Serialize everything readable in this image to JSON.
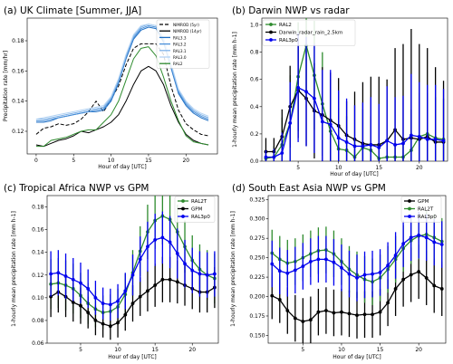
{
  "chart_data": [
    {
      "type": "line",
      "title": "(a) UK Climate [Summer, JJA]",
      "xlabel": "Hour of day [UTC]",
      "ylabel": "Precipitation rate [mm/hr]",
      "xlim": [
        -1.2,
        24.2
      ],
      "ylim": [
        0.105,
        0.195
      ],
      "xticks": [
        0,
        5,
        10,
        15,
        20
      ],
      "yticks": [
        0.12,
        0.14,
        0.16,
        0.18
      ],
      "ytick_labels": [
        "0.12",
        "0.14",
        "0.16",
        "0.18"
      ],
      "legend_position": "top-left",
      "x": [
        0,
        1,
        2,
        3,
        4,
        5,
        6,
        7,
        8,
        9,
        10,
        11,
        12,
        13,
        14,
        15,
        16,
        17,
        18,
        19,
        20,
        21,
        22,
        23
      ],
      "series": [
        {
          "name": "NIMROD (5yr)",
          "color": "#000000",
          "dash": "4,2",
          "values": [
            0.118,
            0.122,
            0.123,
            0.125,
            0.124,
            0.125,
            0.128,
            0.133,
            0.14,
            0.133,
            0.141,
            0.15,
            0.164,
            0.175,
            0.178,
            0.178,
            0.178,
            0.171,
            0.15,
            0.134,
            0.125,
            0.121,
            0.118,
            0.117
          ]
        },
        {
          "name": "NIMROD (14yr)",
          "color": "#000000",
          "values": [
            0.111,
            0.11,
            0.112,
            0.114,
            0.115,
            0.117,
            0.12,
            0.119,
            0.121,
            0.123,
            0.126,
            0.131,
            0.14,
            0.151,
            0.16,
            0.163,
            0.16,
            0.151,
            0.137,
            0.126,
            0.118,
            0.114,
            0.112,
            0.111
          ]
        },
        {
          "name": "RAL3.3",
          "color": "#1f6fc4",
          "values": [
            0.126,
            0.126,
            0.127,
            0.129,
            0.13,
            0.131,
            0.132,
            0.133,
            0.133,
            0.134,
            0.14,
            0.152,
            0.168,
            0.181,
            0.187,
            0.189,
            0.188,
            0.179,
            0.162,
            0.145,
            0.137,
            0.132,
            0.129,
            0.127
          ]
        },
        {
          "name": "RAL3.2",
          "color": "#4a90d9",
          "values": [
            0.127,
            0.127,
            0.128,
            0.129,
            0.13,
            0.131,
            0.132,
            0.133,
            0.134,
            0.135,
            0.141,
            0.153,
            0.169,
            0.182,
            0.188,
            0.19,
            0.189,
            0.18,
            0.163,
            0.146,
            0.138,
            0.133,
            0.13,
            0.128
          ]
        },
        {
          "name": "RAL3.1",
          "color": "#7fb2e8",
          "values": [
            0.128,
            0.128,
            0.129,
            0.13,
            0.131,
            0.132,
            0.133,
            0.134,
            0.135,
            0.136,
            0.142,
            0.154,
            0.17,
            0.183,
            0.189,
            0.191,
            0.19,
            0.181,
            0.164,
            0.147,
            0.139,
            0.134,
            0.131,
            0.129
          ]
        },
        {
          "name": "RAL3.0",
          "color": "#b3d3f3",
          "values": [
            0.128,
            0.129,
            0.13,
            0.131,
            0.132,
            0.133,
            0.134,
            0.135,
            0.136,
            0.137,
            0.143,
            0.155,
            0.171,
            0.184,
            0.19,
            0.191,
            0.19,
            0.182,
            0.165,
            0.148,
            0.14,
            0.135,
            0.132,
            0.13
          ]
        },
        {
          "name": "RAL2",
          "color": "#2e8b2e",
          "values": [
            0.11,
            0.11,
            0.114,
            0.115,
            0.116,
            0.118,
            0.12,
            0.121,
            0.121,
            0.126,
            0.131,
            0.14,
            0.154,
            0.168,
            0.175,
            0.176,
            0.17,
            0.156,
            0.14,
            0.127,
            0.117,
            0.113,
            0.112,
            0.111
          ]
        }
      ]
    },
    {
      "type": "line",
      "title": "(b) Darwin NWP vs radar",
      "xlabel": "Hour of day [UTC]",
      "ylabel": "1-hourly mean precipitation rate [mm h-1]",
      "xlim": [
        0.5,
        23.5
      ],
      "ylim": [
        0,
        1.05
      ],
      "xticks": [
        5,
        10,
        15,
        20
      ],
      "yticks": [
        0,
        0.2,
        0.4,
        0.6,
        0.8,
        1.0
      ],
      "ytick_labels": [
        "0.0",
        "0.2",
        "0.4",
        "0.6",
        "0.8",
        "1.0"
      ],
      "legend_position": "top-left",
      "x": [
        1,
        2,
        3,
        4,
        5,
        6,
        7,
        8,
        9,
        10,
        11,
        12,
        13,
        14,
        15,
        16,
        17,
        18,
        19,
        20,
        21,
        22,
        23
      ],
      "series": [
        {
          "name": "RAL2",
          "color": "#2e8b2e",
          "values": [
            0.02,
            0.03,
            0.12,
            0.28,
            0.62,
            0.85,
            0.63,
            0.42,
            0.22,
            0.09,
            0.08,
            0.03,
            0.1,
            0.08,
            0.02,
            0.03,
            0.03,
            0.03,
            0.08,
            0.18,
            0.2,
            0.17,
            0.16
          ],
          "err": [
            0.05,
            0.08,
            0.2,
            0.35,
            0.4,
            0.4,
            0.4,
            0.38,
            0.38,
            0.3,
            0.25,
            0.12,
            0.28,
            0.25,
            0.1,
            0.1,
            0.1,
            0.12,
            0.3,
            0.32,
            0.3,
            0.3,
            0.3
          ]
        },
        {
          "name": "Darwin_radar_rain_2.5km",
          "color": "#000000",
          "values": [
            0.07,
            0.07,
            0.18,
            0.4,
            0.52,
            0.46,
            0.37,
            0.34,
            0.3,
            0.26,
            0.19,
            0.16,
            0.13,
            0.12,
            0.12,
            0.15,
            0.23,
            0.16,
            0.17,
            0.16,
            0.18,
            0.14,
            0.14
          ],
          "err": [
            0.1,
            0.1,
            0.2,
            0.3,
            0.35,
            0.35,
            0.35,
            0.35,
            0.35,
            0.35,
            0.25,
            0.35,
            0.45,
            0.5,
            0.5,
            0.45,
            0.6,
            0.7,
            0.8,
            0.7,
            0.65,
            0.55,
            0.45
          ]
        },
        {
          "name": "RAL3p0",
          "color": "#0000ee",
          "values": [
            0.03,
            0.03,
            0.06,
            0.28,
            0.54,
            0.51,
            0.46,
            0.29,
            0.27,
            0.17,
            0.14,
            0.11,
            0.11,
            0.12,
            0.1,
            0.15,
            0.12,
            0.13,
            0.19,
            0.18,
            0.16,
            0.16,
            0.15
          ],
          "err": [
            0.05,
            0.06,
            0.15,
            0.3,
            0.4,
            0.4,
            0.4,
            0.38,
            0.4,
            0.35,
            0.32,
            0.3,
            0.32,
            0.35,
            0.32,
            0.4,
            0.35,
            0.35,
            0.45,
            0.4,
            0.4,
            0.4,
            0.38
          ]
        }
      ]
    },
    {
      "type": "line",
      "title": "(c) Tropical Africa NWP vs GPM",
      "xlabel": "Hour of day [UTC]",
      "ylabel": "1-hourly mean precipitation rate [mm h-1]",
      "xlim": [
        0.5,
        23.5
      ],
      "ylim": [
        0.06,
        0.19
      ],
      "xticks": [
        5,
        10,
        15,
        20
      ],
      "yticks": [
        0.06,
        0.08,
        0.1,
        0.12,
        0.14,
        0.16,
        0.18
      ],
      "ytick_labels": [
        "0.06",
        "0.08",
        "0.10",
        "0.12",
        "0.14",
        "0.16",
        "0.18"
      ],
      "legend_position": "top-right",
      "x": [
        1,
        2,
        3,
        4,
        5,
        6,
        7,
        8,
        9,
        10,
        11,
        12,
        13,
        14,
        15,
        16,
        17,
        18,
        19,
        20,
        21,
        22,
        23
      ],
      "series": [
        {
          "name": "RAL2T",
          "color": "#2e8b2e",
          "values": [
            0.112,
            0.113,
            0.111,
            0.108,
            0.102,
            0.095,
            0.09,
            0.087,
            0.088,
            0.092,
            0.103,
            0.122,
            0.141,
            0.158,
            0.168,
            0.172,
            0.169,
            0.158,
            0.145,
            0.133,
            0.125,
            0.12,
            0.117
          ],
          "err": [
            0.022,
            0.022,
            0.022,
            0.022,
            0.02,
            0.018,
            0.016,
            0.015,
            0.015,
            0.016,
            0.018,
            0.02,
            0.022,
            0.024,
            0.025,
            0.025,
            0.025,
            0.024,
            0.023,
            0.022,
            0.022,
            0.022,
            0.022
          ]
        },
        {
          "name": "GPM",
          "color": "#000000",
          "values": [
            0.101,
            0.105,
            0.101,
            0.096,
            0.093,
            0.087,
            0.08,
            0.077,
            0.075,
            0.078,
            0.085,
            0.095,
            0.101,
            0.106,
            0.111,
            0.116,
            0.116,
            0.114,
            0.111,
            0.108,
            0.105,
            0.105,
            0.109
          ],
          "err": [
            0.018,
            0.018,
            0.018,
            0.017,
            0.016,
            0.014,
            0.013,
            0.012,
            0.012,
            0.013,
            0.014,
            0.016,
            0.017,
            0.018,
            0.019,
            0.02,
            0.02,
            0.019,
            0.018,
            0.018,
            0.018,
            0.018,
            0.018
          ]
        },
        {
          "name": "RAL3p0",
          "color": "#0000ee",
          "values": [
            0.121,
            0.122,
            0.119,
            0.116,
            0.113,
            0.108,
            0.1,
            0.095,
            0.094,
            0.097,
            0.106,
            0.12,
            0.134,
            0.145,
            0.151,
            0.153,
            0.149,
            0.139,
            0.13,
            0.124,
            0.121,
            0.12,
            0.121
          ],
          "err": [
            0.02,
            0.02,
            0.02,
            0.019,
            0.018,
            0.017,
            0.015,
            0.014,
            0.014,
            0.015,
            0.016,
            0.018,
            0.02,
            0.022,
            0.023,
            0.023,
            0.023,
            0.022,
            0.021,
            0.02,
            0.02,
            0.02,
            0.02
          ]
        }
      ]
    },
    {
      "type": "line",
      "title": "(d) South East Asia NWP vs GPM",
      "xlabel": "Hour of day [UTC]",
      "ylabel": "1-hourly mean precipitation rate [mm h-1]",
      "xlim": [
        0.5,
        23.5
      ],
      "ylim": [
        0.14,
        0.33
      ],
      "xticks": [
        5,
        10,
        15,
        20
      ],
      "yticks": [
        0.15,
        0.175,
        0.2,
        0.225,
        0.25,
        0.275,
        0.3,
        0.325
      ],
      "ytick_labels": [
        "0.150",
        "0.175",
        "0.200",
        "0.225",
        "0.250",
        "0.275",
        "0.300",
        "0.325"
      ],
      "legend_position": "top-right",
      "x": [
        1,
        2,
        3,
        4,
        5,
        6,
        7,
        8,
        9,
        10,
        11,
        12,
        13,
        14,
        15,
        16,
        17,
        18,
        19,
        20,
        21,
        22,
        23
      ],
      "series": [
        {
          "name": "GPM",
          "color": "#000000",
          "values": [
            0.201,
            0.196,
            0.182,
            0.172,
            0.168,
            0.17,
            0.18,
            0.182,
            0.179,
            0.18,
            0.178,
            0.176,
            0.177,
            0.177,
            0.18,
            0.192,
            0.21,
            0.222,
            0.228,
            0.232,
            0.224,
            0.214,
            0.21
          ],
          "err": [
            0.03,
            0.03,
            0.03,
            0.03,
            0.03,
            0.03,
            0.03,
            0.03,
            0.03,
            0.03,
            0.03,
            0.03,
            0.03,
            0.03,
            0.03,
            0.03,
            0.035,
            0.035,
            0.035,
            0.035,
            0.035,
            0.035,
            0.035
          ]
        },
        {
          "name": "RAL2T",
          "color": "#2e8b2e",
          "values": [
            0.256,
            0.248,
            0.243,
            0.245,
            0.25,
            0.255,
            0.259,
            0.26,
            0.255,
            0.245,
            0.235,
            0.228,
            0.222,
            0.219,
            0.224,
            0.235,
            0.248,
            0.262,
            0.272,
            0.278,
            0.28,
            0.276,
            0.271
          ],
          "err": [
            0.03,
            0.03,
            0.03,
            0.03,
            0.03,
            0.03,
            0.03,
            0.03,
            0.03,
            0.03,
            0.03,
            0.03,
            0.03,
            0.03,
            0.03,
            0.03,
            0.03,
            0.03,
            0.03,
            0.03,
            0.03,
            0.03,
            0.03
          ]
        },
        {
          "name": "RAL3p0",
          "color": "#0000ee",
          "values": [
            0.242,
            0.233,
            0.23,
            0.234,
            0.239,
            0.245,
            0.248,
            0.248,
            0.244,
            0.237,
            0.229,
            0.224,
            0.228,
            0.229,
            0.231,
            0.24,
            0.253,
            0.268,
            0.276,
            0.279,
            0.276,
            0.27,
            0.267
          ],
          "err": [
            0.03,
            0.03,
            0.03,
            0.03,
            0.03,
            0.03,
            0.03,
            0.03,
            0.03,
            0.03,
            0.03,
            0.03,
            0.03,
            0.03,
            0.03,
            0.03,
            0.03,
            0.03,
            0.03,
            0.03,
            0.03,
            0.03,
            0.03
          ]
        }
      ]
    }
  ]
}
